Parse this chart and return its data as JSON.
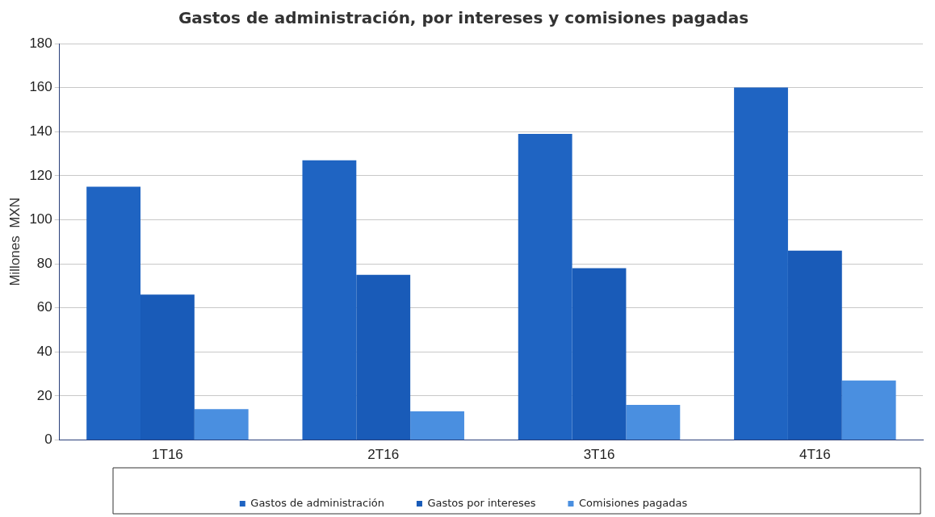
{
  "chart_data": {
    "type": "bar",
    "title": "Gastos de administración, por intereses y comisiones pagadas",
    "ylabel": "Millones  MXN",
    "categories": [
      "1T16",
      "2T16",
      "3T16",
      "4T16"
    ],
    "series": [
      {
        "name": "Gastos de administración",
        "color": "#1f64c2",
        "values": [
          115,
          127,
          139,
          160
        ]
      },
      {
        "name": "Gastos por intereses",
        "color": "#195bb8",
        "values": [
          66,
          75,
          78,
          86
        ]
      },
      {
        "name": "Comisiones pagadas",
        "color": "#4a8fe0",
        "values": [
          14,
          13,
          16,
          27
        ]
      }
    ],
    "ylim": [
      0,
      180
    ],
    "yticks": [
      0,
      20,
      40,
      60,
      80,
      100,
      120,
      140,
      160,
      180
    ],
    "grid": "y",
    "legend": "bottom"
  }
}
